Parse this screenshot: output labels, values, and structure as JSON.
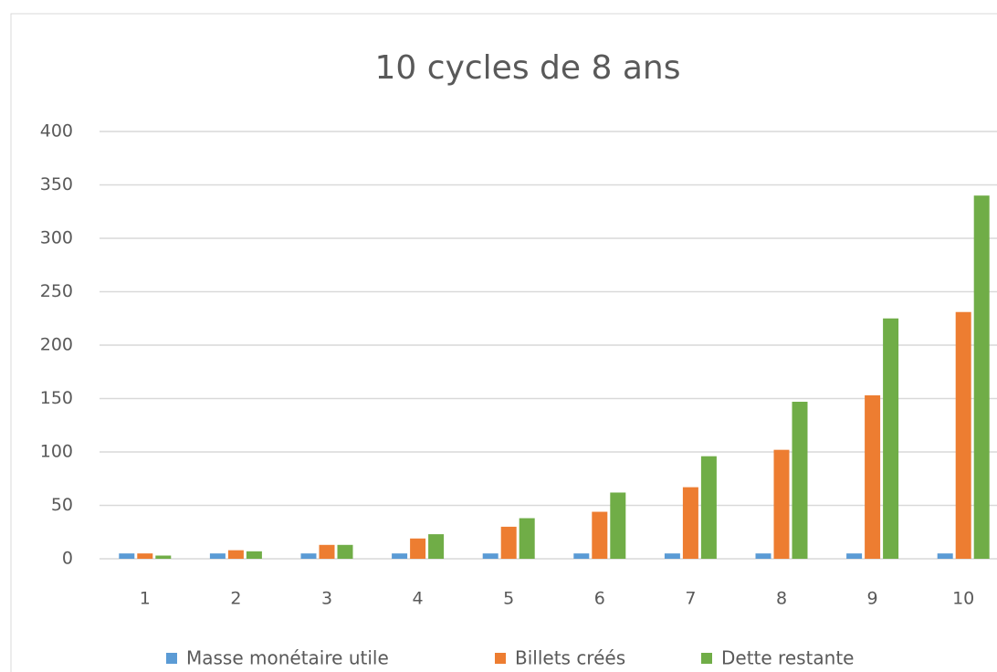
{
  "chart_data": {
    "type": "bar",
    "title": "10 cycles de 8 ans",
    "categories": [
      "1",
      "2",
      "3",
      "4",
      "5",
      "6",
      "7",
      "8",
      "9",
      "10"
    ],
    "series": [
      {
        "name": "Masse monétaire utile",
        "color": "#5b9bd5",
        "values": [
          5,
          5,
          5,
          5,
          5,
          5,
          5,
          5,
          5,
          5
        ]
      },
      {
        "name": "Billets créés",
        "color": "#ed7d31",
        "values": [
          5,
          8,
          13,
          19,
          30,
          44,
          67,
          102,
          153,
          231
        ]
      },
      {
        "name": "Dette restante",
        "color": "#70ad47",
        "values": [
          3,
          7,
          13,
          23,
          38,
          62,
          96,
          147,
          225,
          340
        ]
      }
    ],
    "ylim": [
      0,
      400
    ],
    "yticks": [
      0,
      50,
      100,
      150,
      200,
      250,
      300,
      350,
      400
    ],
    "grid": true,
    "legend": "bottom"
  }
}
